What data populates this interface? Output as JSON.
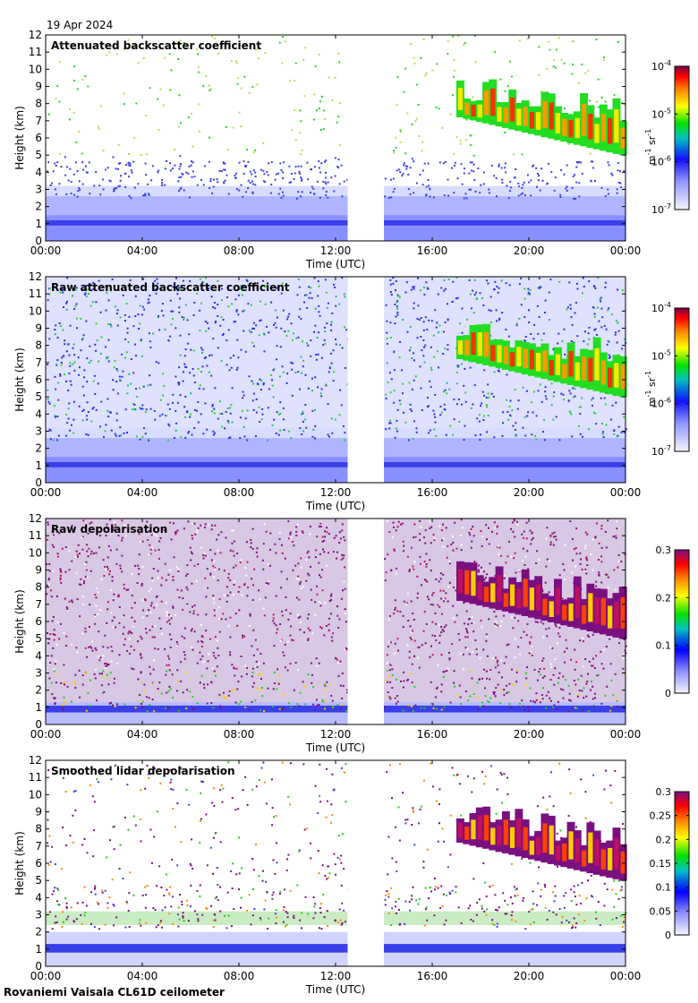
{
  "date": "19 Apr 2024",
  "footer": "Rovaniemi Vaisala CL61D ceilometer",
  "colors": {
    "cloud_red": "#ff3000",
    "cloud_orange": "#ff9a00",
    "cloud_yellow": "#ffe800",
    "cloud_green": "#22dd22",
    "low_blue": "#3333ee",
    "pale_blue": "#c8ccff",
    "depol_purple": "#7a1080",
    "data_gap": "#ffffff"
  },
  "chart_data": [
    {
      "type": "heatmap",
      "title": "Attenuated backscatter coefficient",
      "xlabel": "Time (UTC)",
      "ylabel": "Height (km)",
      "x_ticks": [
        "00:00",
        "04:00",
        "08:00",
        "12:00",
        "16:00",
        "20:00",
        "00:00"
      ],
      "y_ticks": [
        "0",
        "1",
        "2",
        "3",
        "4",
        "5",
        "6",
        "7",
        "8",
        "9",
        "10",
        "11",
        "12"
      ],
      "ylim": [
        0,
        12
      ],
      "xlim_hours": [
        0,
        24
      ],
      "data_gap_hours": [
        12.5,
        14.0
      ],
      "colorbar": {
        "scale": "log",
        "ticks": [
          {
            "base": "10",
            "exp": "-4"
          },
          {
            "base": "10",
            "exp": "-5"
          },
          {
            "base": "10",
            "exp": "-6"
          },
          {
            "base": "10",
            "exp": "-7"
          }
        ],
        "label_main": "m",
        "label_exp1": "-1",
        "label_mid": " sr",
        "label_exp2": "-1",
        "range": [
          "1e-7",
          "1e-4"
        ]
      }
    },
    {
      "type": "heatmap",
      "title": "Raw attenuated backscatter coefficient",
      "xlabel": "Time (UTC)",
      "ylabel": "Height (km)",
      "x_ticks": [
        "00:00",
        "04:00",
        "08:00",
        "12:00",
        "16:00",
        "20:00",
        "00:00"
      ],
      "y_ticks": [
        "0",
        "1",
        "2",
        "3",
        "4",
        "5",
        "6",
        "7",
        "8",
        "9",
        "10",
        "11",
        "12"
      ],
      "ylim": [
        0,
        12
      ],
      "xlim_hours": [
        0,
        24
      ],
      "data_gap_hours": [
        12.5,
        14.0
      ],
      "colorbar": {
        "scale": "log",
        "ticks": [
          {
            "base": "10",
            "exp": "-4"
          },
          {
            "base": "10",
            "exp": "-5"
          },
          {
            "base": "10",
            "exp": "-6"
          },
          {
            "base": "10",
            "exp": "-7"
          }
        ],
        "label_main": "m",
        "label_exp1": "-1",
        "label_mid": " sr",
        "label_exp2": "-1",
        "range": [
          "1e-7",
          "1e-4"
        ]
      }
    },
    {
      "type": "heatmap",
      "title": "Raw depolarisation",
      "xlabel": "Time (UTC)",
      "ylabel": "Height (km)",
      "x_ticks": [
        "00:00",
        "04:00",
        "08:00",
        "12:00",
        "16:00",
        "20:00",
        "00:00"
      ],
      "y_ticks": [
        "0",
        "1",
        "2",
        "3",
        "4",
        "5",
        "6",
        "7",
        "8",
        "9",
        "10",
        "11",
        "12"
      ],
      "ylim": [
        0,
        12
      ],
      "xlim_hours": [
        0,
        24
      ],
      "data_gap_hours": [
        12.5,
        14.0
      ],
      "colorbar": {
        "scale": "linear",
        "ticks": [
          "0.3",
          "0.2",
          "0.1",
          "0"
        ],
        "range": [
          0,
          0.3
        ]
      }
    },
    {
      "type": "heatmap",
      "title": "Smoothed lidar depolarisation",
      "xlabel": "Time (UTC)",
      "ylabel": "Height (km)",
      "x_ticks": [
        "00:00",
        "04:00",
        "08:00",
        "12:00",
        "16:00",
        "20:00",
        "00:00"
      ],
      "y_ticks": [
        "0",
        "1",
        "2",
        "3",
        "4",
        "5",
        "6",
        "7",
        "8",
        "9",
        "10",
        "11",
        "12"
      ],
      "ylim": [
        0,
        12
      ],
      "xlim_hours": [
        0,
        24
      ],
      "data_gap_hours": [
        12.5,
        14.0
      ],
      "colorbar": {
        "scale": "linear",
        "ticks": [
          "0.3",
          "0.25",
          "0.2",
          "0.15",
          "0.1",
          "0.05",
          "0"
        ],
        "range": [
          0,
          0.3
        ]
      }
    }
  ]
}
